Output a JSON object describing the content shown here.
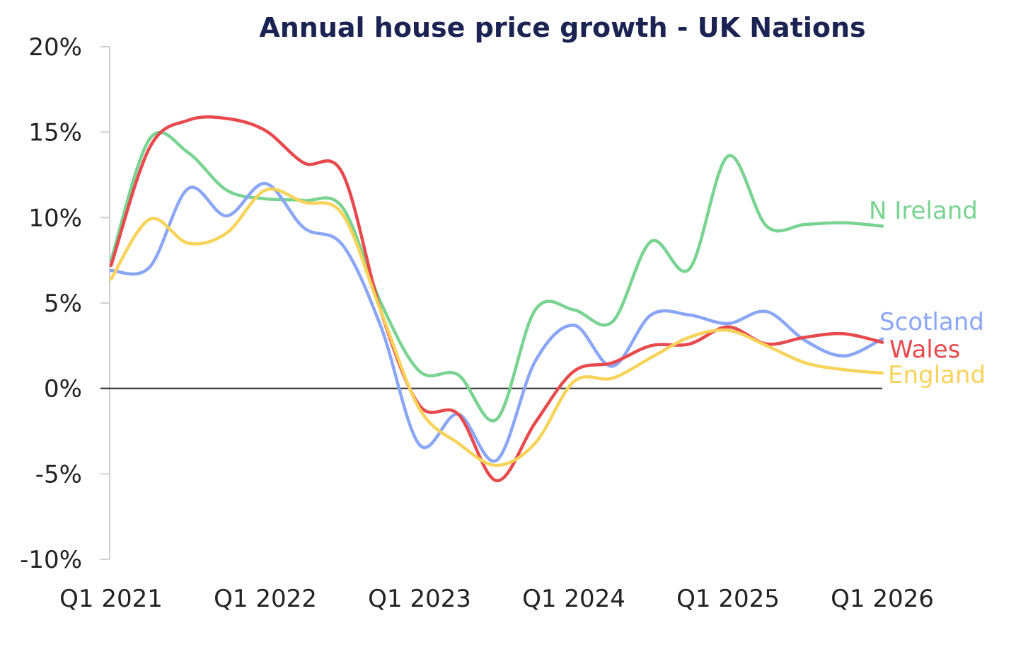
{
  "chart_data": {
    "type": "line",
    "title": "Annual house price growth - UK Nations",
    "xlabel": "",
    "ylabel": "",
    "ylim": [
      -10,
      20
    ],
    "xlim": [
      0,
      20
    ],
    "x_ticks": [
      {
        "x": 0,
        "label": "Q1 2021"
      },
      {
        "x": 4,
        "label": "Q1 2022"
      },
      {
        "x": 8,
        "label": "Q1 2023"
      },
      {
        "x": 12,
        "label": "Q1 2024"
      },
      {
        "x": 16,
        "label": "Q1 2025"
      },
      {
        "x": 20,
        "label": "Q1 2026"
      }
    ],
    "y_ticks": [
      {
        "y": 20,
        "label": "20%"
      },
      {
        "y": 15,
        "label": "15%"
      },
      {
        "y": 10,
        "label": "10%"
      },
      {
        "y": 5,
        "label": "5%"
      },
      {
        "y": 0,
        "label": "0%"
      },
      {
        "y": -5,
        "label": "-5%"
      },
      {
        "y": -10,
        "label": "-10%"
      }
    ],
    "grid": false,
    "legend": "inline labels at line ends",
    "series": [
      {
        "name": "N Ireland",
        "color": "#79d391",
        "x": [
          0,
          1,
          2,
          3,
          4,
          5,
          6,
          7,
          8,
          9,
          10,
          11,
          12,
          13,
          14,
          15,
          16,
          17,
          18,
          19,
          20
        ],
        "values": [
          7.5,
          14.6,
          13.8,
          11.6,
          11.1,
          11.0,
          10.6,
          5.0,
          1.0,
          0.8,
          -1.8,
          4.6,
          4.6,
          3.9,
          8.6,
          7.0,
          13.6,
          9.5,
          9.6,
          9.7,
          9.5
        ]
      },
      {
        "name": "Scotland",
        "color": "#8aa6f7",
        "x": [
          0,
          1,
          2,
          3,
          4,
          5,
          6,
          7,
          8,
          9,
          10,
          11,
          12,
          13,
          14,
          15,
          16,
          17,
          18,
          19,
          20
        ],
        "values": [
          6.9,
          7.1,
          11.7,
          10.1,
          12.0,
          9.4,
          8.4,
          3.6,
          -3.3,
          -1.5,
          -4.2,
          1.6,
          3.7,
          1.3,
          4.3,
          4.3,
          3.8,
          4.5,
          2.8,
          1.9,
          2.9
        ]
      },
      {
        "name": "Wales",
        "color": "#e8494c",
        "x": [
          0,
          1,
          2,
          3,
          4,
          5,
          6,
          7,
          8,
          9,
          10,
          11,
          12,
          13,
          14,
          15,
          16,
          17,
          18,
          19,
          20
        ],
        "values": [
          7.2,
          14.1,
          15.7,
          15.8,
          15.1,
          13.2,
          12.6,
          4.5,
          -1.0,
          -1.5,
          -5.4,
          -2.0,
          1.0,
          1.5,
          2.5,
          2.6,
          3.6,
          2.6,
          3.0,
          3.2,
          2.7
        ]
      },
      {
        "name": "England",
        "color": "#f8d35a",
        "x": [
          0,
          1,
          2,
          3,
          4,
          5,
          6,
          7,
          8,
          9,
          10,
          11,
          12,
          13,
          14,
          15,
          16,
          17,
          18,
          19,
          20
        ],
        "values": [
          6.4,
          9.9,
          8.5,
          9.1,
          11.6,
          10.9,
          10.2,
          4.5,
          -1.2,
          -3.2,
          -4.5,
          -3.2,
          0.4,
          0.6,
          1.8,
          3.0,
          3.4,
          2.5,
          1.5,
          1.1,
          0.9
        ]
      }
    ]
  }
}
